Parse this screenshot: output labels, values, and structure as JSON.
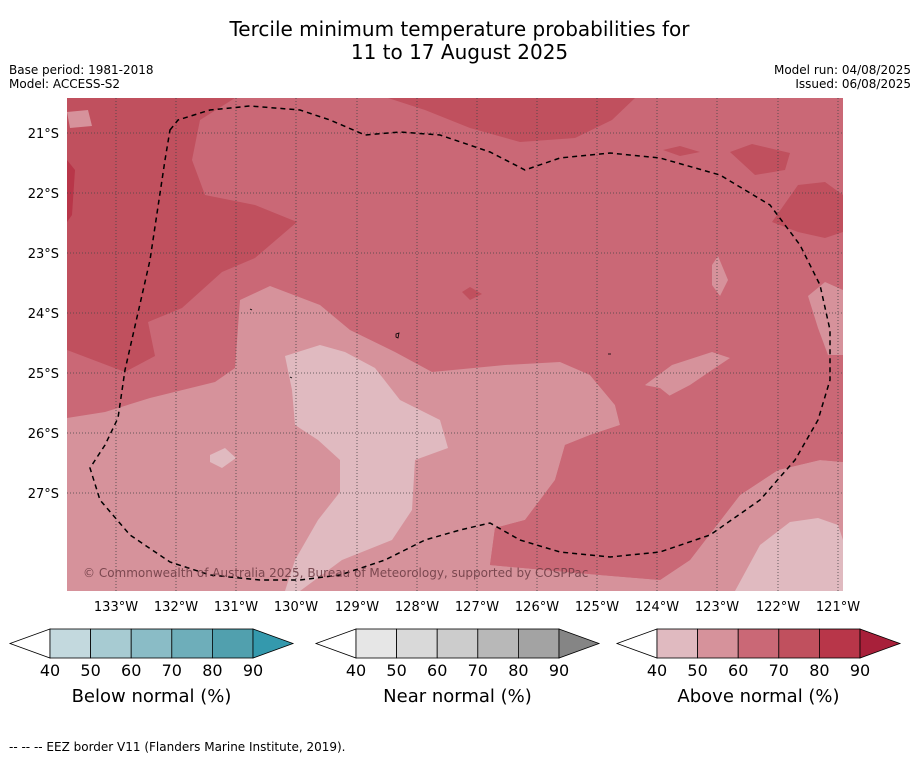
{
  "header": {
    "title_line1": "Tercile minimum temperature probabilities for",
    "title_line2": "11 to 17 August 2025",
    "base_period": "Base period: 1981-2018",
    "model": "Model: ACCESS-S2",
    "model_run": "Model run: 04/08/2025",
    "issued": "Issued: 06/08/2025"
  },
  "map": {
    "lat_labels": [
      "21°S",
      "22°S",
      "23°S",
      "24°S",
      "25°S",
      "26°S",
      "27°S"
    ],
    "lon_labels": [
      "133°W",
      "132°W",
      "131°W",
      "130°W",
      "129°W",
      "128°W",
      "127°W",
      "126°W",
      "125°W",
      "124°W",
      "123°W",
      "122°W",
      "121°W"
    ],
    "copyright": "© Commonwealth of Australia 2025, Bureau of Meteorology, supported by COSPPac",
    "colors": {
      "above_40_50": "#e0bac0",
      "above_50_60": "#d6929b",
      "above_60_70": "#ca6876",
      "above_70_80": "#c0505e",
      "above_80_90": "#b83649",
      "above_90": "#a8203a"
    }
  },
  "legends": [
    {
      "label": "Below normal (%)",
      "ticks": [
        "40",
        "50",
        "60",
        "70",
        "80",
        "90"
      ],
      "colors": [
        "#ffffff",
        "#c3d9de",
        "#a7cbd2",
        "#8abcc6",
        "#6eaeba",
        "#51a0ae",
        "#3499ad"
      ]
    },
    {
      "label": "Near normal (%)",
      "ticks": [
        "40",
        "50",
        "60",
        "70",
        "80",
        "90"
      ],
      "colors": [
        "#ffffff",
        "#e6e6e6",
        "#d9d9d9",
        "#cccccc",
        "#b8b8b8",
        "#a3a3a3",
        "#858585"
      ]
    },
    {
      "label": "Above normal (%)",
      "ticks": [
        "40",
        "50",
        "60",
        "70",
        "80",
        "90"
      ],
      "colors": [
        "#ffffff",
        "#e0bac0",
        "#d6929b",
        "#ca6876",
        "#c0505e",
        "#b83649",
        "#a8203a"
      ]
    }
  ],
  "footer": {
    "eez_note": "--  --  -- EEZ border V11 (Flanders Marine Institute, 2019)."
  }
}
